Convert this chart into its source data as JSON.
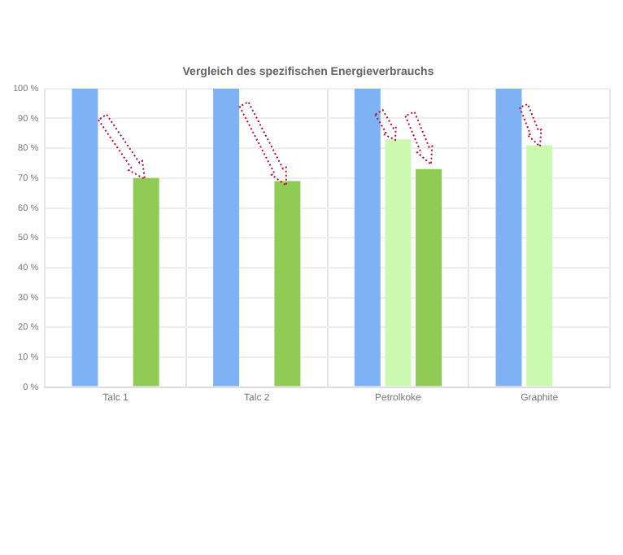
{
  "chart_data": {
    "type": "bar",
    "title": "Vergleich des spezifischen Energieverbrauchs",
    "categories": [
      "Talc 1",
      "Talc 2",
      "Petrolkoke",
      "Graphite"
    ],
    "series": [
      {
        "color": "#7fb2f5",
        "values": [
          100,
          100,
          100,
          100
        ]
      },
      {
        "color": "#ccf9b0",
        "values": [
          null,
          null,
          83,
          81
        ]
      },
      {
        "color": "#8fcb55",
        "values": [
          70,
          69,
          73,
          null
        ]
      }
    ],
    "ylim": [
      0,
      100
    ],
    "yticks": [
      {
        "value": 0,
        "label": "0 %"
      },
      {
        "value": 10,
        "label": "10 %"
      },
      {
        "value": 20,
        "label": "20 %"
      },
      {
        "value": 30,
        "label": "30 %"
      },
      {
        "value": 40,
        "label": "40 %"
      },
      {
        "value": 50,
        "label": "50 %"
      },
      {
        "value": 60,
        "label": "60 %"
      },
      {
        "value": 70,
        "label": "70 %"
      },
      {
        "value": 80,
        "label": "80 %"
      },
      {
        "value": 90,
        "label": "90 %"
      },
      {
        "value": 100,
        "label": "100 %"
      }
    ],
    "grid": true,
    "legend": false
  }
}
